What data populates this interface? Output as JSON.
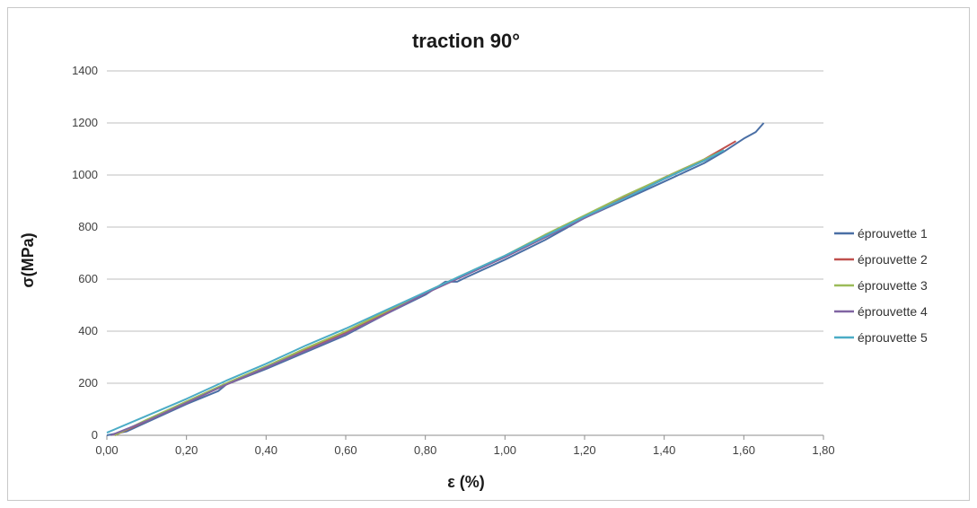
{
  "chart_data": {
    "type": "line",
    "title": "traction 90°",
    "xlabel": "ε (%)",
    "ylabel": "σ(MPa)",
    "xlim": [
      0,
      1.8
    ],
    "ylim": [
      0,
      1400
    ],
    "x_ticks": [
      "0,00",
      "0,20",
      "0,40",
      "0,60",
      "0,80",
      "1,00",
      "1,20",
      "1,40",
      "1,60",
      "1,80"
    ],
    "y_ticks": [
      "0",
      "200",
      "400",
      "600",
      "800",
      "1000",
      "1200",
      "1400"
    ],
    "grid": "horizontal",
    "legend_position": "right",
    "series": [
      {
        "name": "éprouvette 1",
        "color": "#4a6fa5",
        "points": [
          [
            0,
            0
          ],
          [
            0.05,
            15
          ],
          [
            0.1,
            50
          ],
          [
            0.2,
            120
          ],
          [
            0.28,
            170
          ],
          [
            0.3,
            195
          ],
          [
            0.4,
            255
          ],
          [
            0.5,
            320
          ],
          [
            0.6,
            385
          ],
          [
            0.7,
            465
          ],
          [
            0.8,
            540
          ],
          [
            0.85,
            590
          ],
          [
            0.88,
            590
          ],
          [
            0.9,
            605
          ],
          [
            1.0,
            675
          ],
          [
            1.1,
            750
          ],
          [
            1.2,
            835
          ],
          [
            1.3,
            905
          ],
          [
            1.4,
            975
          ],
          [
            1.5,
            1045
          ],
          [
            1.55,
            1090
          ],
          [
            1.6,
            1140
          ],
          [
            1.63,
            1165
          ],
          [
            1.65,
            1200
          ]
        ]
      },
      {
        "name": "éprouvette 2",
        "color": "#c0504d",
        "points": [
          [
            0.02,
            0
          ],
          [
            0.1,
            55
          ],
          [
            0.2,
            125
          ],
          [
            0.3,
            195
          ],
          [
            0.4,
            260
          ],
          [
            0.5,
            330
          ],
          [
            0.6,
            395
          ],
          [
            0.7,
            470
          ],
          [
            0.8,
            545
          ],
          [
            0.9,
            615
          ],
          [
            1.0,
            685
          ],
          [
            1.1,
            760
          ],
          [
            1.2,
            840
          ],
          [
            1.3,
            915
          ],
          [
            1.4,
            990
          ],
          [
            1.5,
            1060
          ],
          [
            1.58,
            1130
          ]
        ]
      },
      {
        "name": "éprouvette 3",
        "color": "#9bbb59",
        "points": [
          [
            0.02,
            0
          ],
          [
            0.1,
            60
          ],
          [
            0.2,
            130
          ],
          [
            0.3,
            200
          ],
          [
            0.4,
            265
          ],
          [
            0.5,
            335
          ],
          [
            0.6,
            400
          ],
          [
            0.7,
            475
          ],
          [
            0.8,
            550
          ],
          [
            0.9,
            620
          ],
          [
            1.0,
            690
          ],
          [
            1.1,
            770
          ],
          [
            1.2,
            845
          ],
          [
            1.3,
            920
          ],
          [
            1.4,
            990
          ],
          [
            1.5,
            1060
          ],
          [
            1.55,
            1095
          ]
        ]
      },
      {
        "name": "éprouvette 4",
        "color": "#8064a2",
        "points": [
          [
            0.01,
            0
          ],
          [
            0.1,
            55
          ],
          [
            0.2,
            125
          ],
          [
            0.3,
            195
          ],
          [
            0.4,
            260
          ],
          [
            0.5,
            325
          ],
          [
            0.6,
            390
          ],
          [
            0.7,
            465
          ],
          [
            0.8,
            545
          ],
          [
            0.9,
            615
          ],
          [
            1.0,
            685
          ],
          [
            1.1,
            760
          ],
          [
            1.2,
            835
          ],
          [
            1.3,
            910
          ],
          [
            1.4,
            985
          ],
          [
            1.5,
            1055
          ],
          [
            1.52,
            1070
          ]
        ]
      },
      {
        "name": "éprouvette 5",
        "color": "#4bacc6",
        "points": [
          [
            0,
            10
          ],
          [
            0.1,
            75
          ],
          [
            0.2,
            140
          ],
          [
            0.3,
            210
          ],
          [
            0.4,
            275
          ],
          [
            0.5,
            345
          ],
          [
            0.6,
            410
          ],
          [
            0.7,
            480
          ],
          [
            0.8,
            550
          ],
          [
            0.9,
            620
          ],
          [
            1.0,
            690
          ],
          [
            1.1,
            765
          ],
          [
            1.2,
            840
          ],
          [
            1.3,
            910
          ],
          [
            1.4,
            985
          ],
          [
            1.5,
            1055
          ],
          [
            1.55,
            1095
          ]
        ]
      }
    ]
  }
}
